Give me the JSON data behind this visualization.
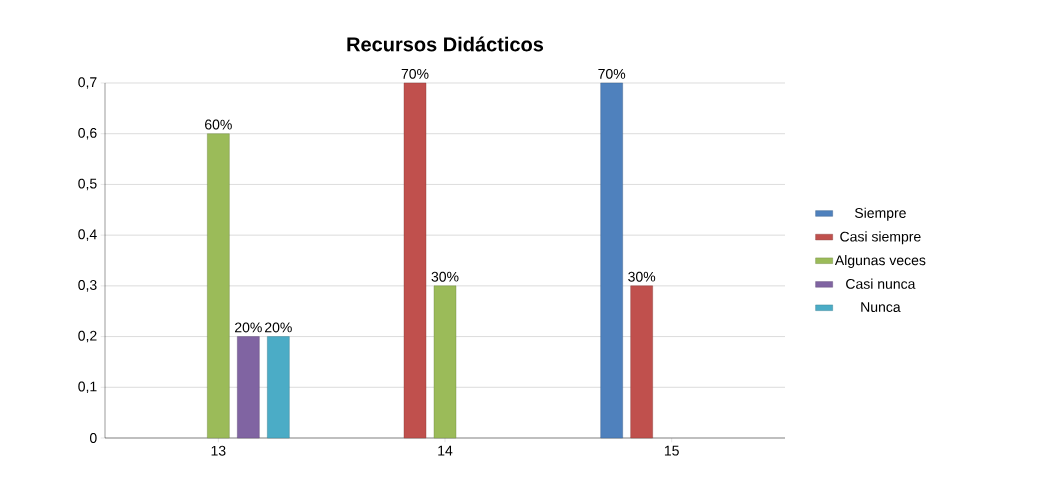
{
  "chart_data": {
    "type": "bar",
    "title": "Recursos Didácticos",
    "categories": [
      "13",
      "14",
      "15"
    ],
    "series": [
      {
        "name": "Siempre",
        "color": "#4f81bd",
        "values": [
          null,
          null,
          0.7
        ],
        "value_labels": [
          null,
          null,
          "70%"
        ]
      },
      {
        "name": "Casi siempre",
        "color": "#c0504d",
        "values": [
          null,
          0.7,
          0.3
        ],
        "value_labels": [
          null,
          "70%",
          "30%"
        ]
      },
      {
        "name": "Algunas veces",
        "color": "#9bbb59",
        "values": [
          0.6,
          0.3,
          null
        ],
        "value_labels": [
          "60%",
          "30%",
          null
        ]
      },
      {
        "name": "Casi nunca",
        "color": "#8064a2",
        "values": [
          0.2,
          null,
          null
        ],
        "value_labels": [
          "20%",
          null,
          null
        ]
      },
      {
        "name": "Nunca",
        "color": "#4bacc6",
        "values": [
          0.2,
          null,
          null
        ],
        "value_labels": [
          "20%",
          null,
          null
        ]
      }
    ],
    "ylim": [
      0,
      0.7
    ],
    "yticks": [
      0,
      {
        "value": 0.1,
        "label": "0,1"
      },
      {
        "value": 0.2,
        "label": "0,2"
      },
      {
        "value": 0.3,
        "label": "0,3"
      },
      {
        "value": 0.4,
        "label": "0,4"
      },
      {
        "value": 0.5,
        "label": "0,5"
      },
      {
        "value": 0.6,
        "label": "0,6"
      },
      {
        "value": 0.7,
        "label": "0,7"
      }
    ],
    "grid": "y",
    "legend": "right"
  }
}
